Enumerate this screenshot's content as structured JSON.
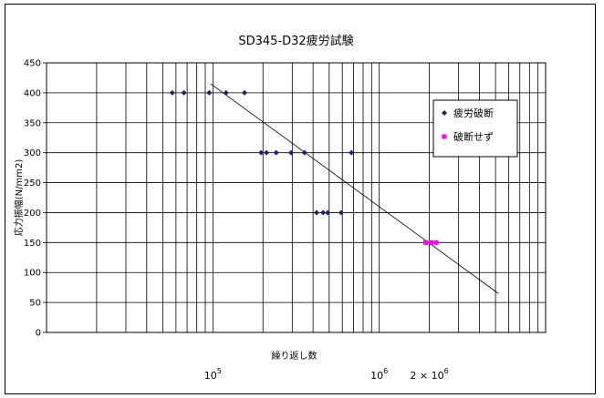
{
  "chart_data": {
    "type": "scatter",
    "title": "SD345-D32疲労試験",
    "xlabel": "繰り返し数",
    "ylabel": "応力振幅(N/mm2)",
    "xscale": "log",
    "xlim": [
      10000,
      10000000
    ],
    "ylim": [
      0,
      450
    ],
    "yticks": [
      0,
      50,
      100,
      150,
      200,
      250,
      300,
      350,
      400,
      450
    ],
    "x_tick_labels": [
      {
        "value": 100000,
        "base": "10",
        "exp": "5"
      },
      {
        "value": 1000000,
        "base": "10",
        "exp": "6"
      },
      {
        "value": 2000000,
        "prefix": "2 × ",
        "base": "10",
        "exp": "6"
      }
    ],
    "grid": true,
    "legend_position": "right",
    "series": [
      {
        "name": "疲労破断",
        "marker": "diamond",
        "color": "#1f1f6e",
        "points": [
          [
            57000,
            400
          ],
          [
            67000,
            400
          ],
          [
            95000,
            400
          ],
          [
            120000,
            400
          ],
          [
            155000,
            400
          ],
          [
            195000,
            300
          ],
          [
            210000,
            300
          ],
          [
            240000,
            300
          ],
          [
            295000,
            300
          ],
          [
            355000,
            300
          ],
          [
            680000,
            300
          ],
          [
            420000,
            200
          ],
          [
            460000,
            200
          ],
          [
            490000,
            200
          ],
          [
            590000,
            200
          ]
        ]
      },
      {
        "name": "破断せず",
        "marker": "square",
        "color": "#ff00ff",
        "points": [
          [
            1900000,
            150
          ],
          [
            2050000,
            150
          ],
          [
            2200000,
            150
          ]
        ]
      }
    ],
    "trendline": {
      "color": "#000000",
      "points": [
        [
          97000,
          415
        ],
        [
          5200000,
          65
        ]
      ]
    }
  }
}
